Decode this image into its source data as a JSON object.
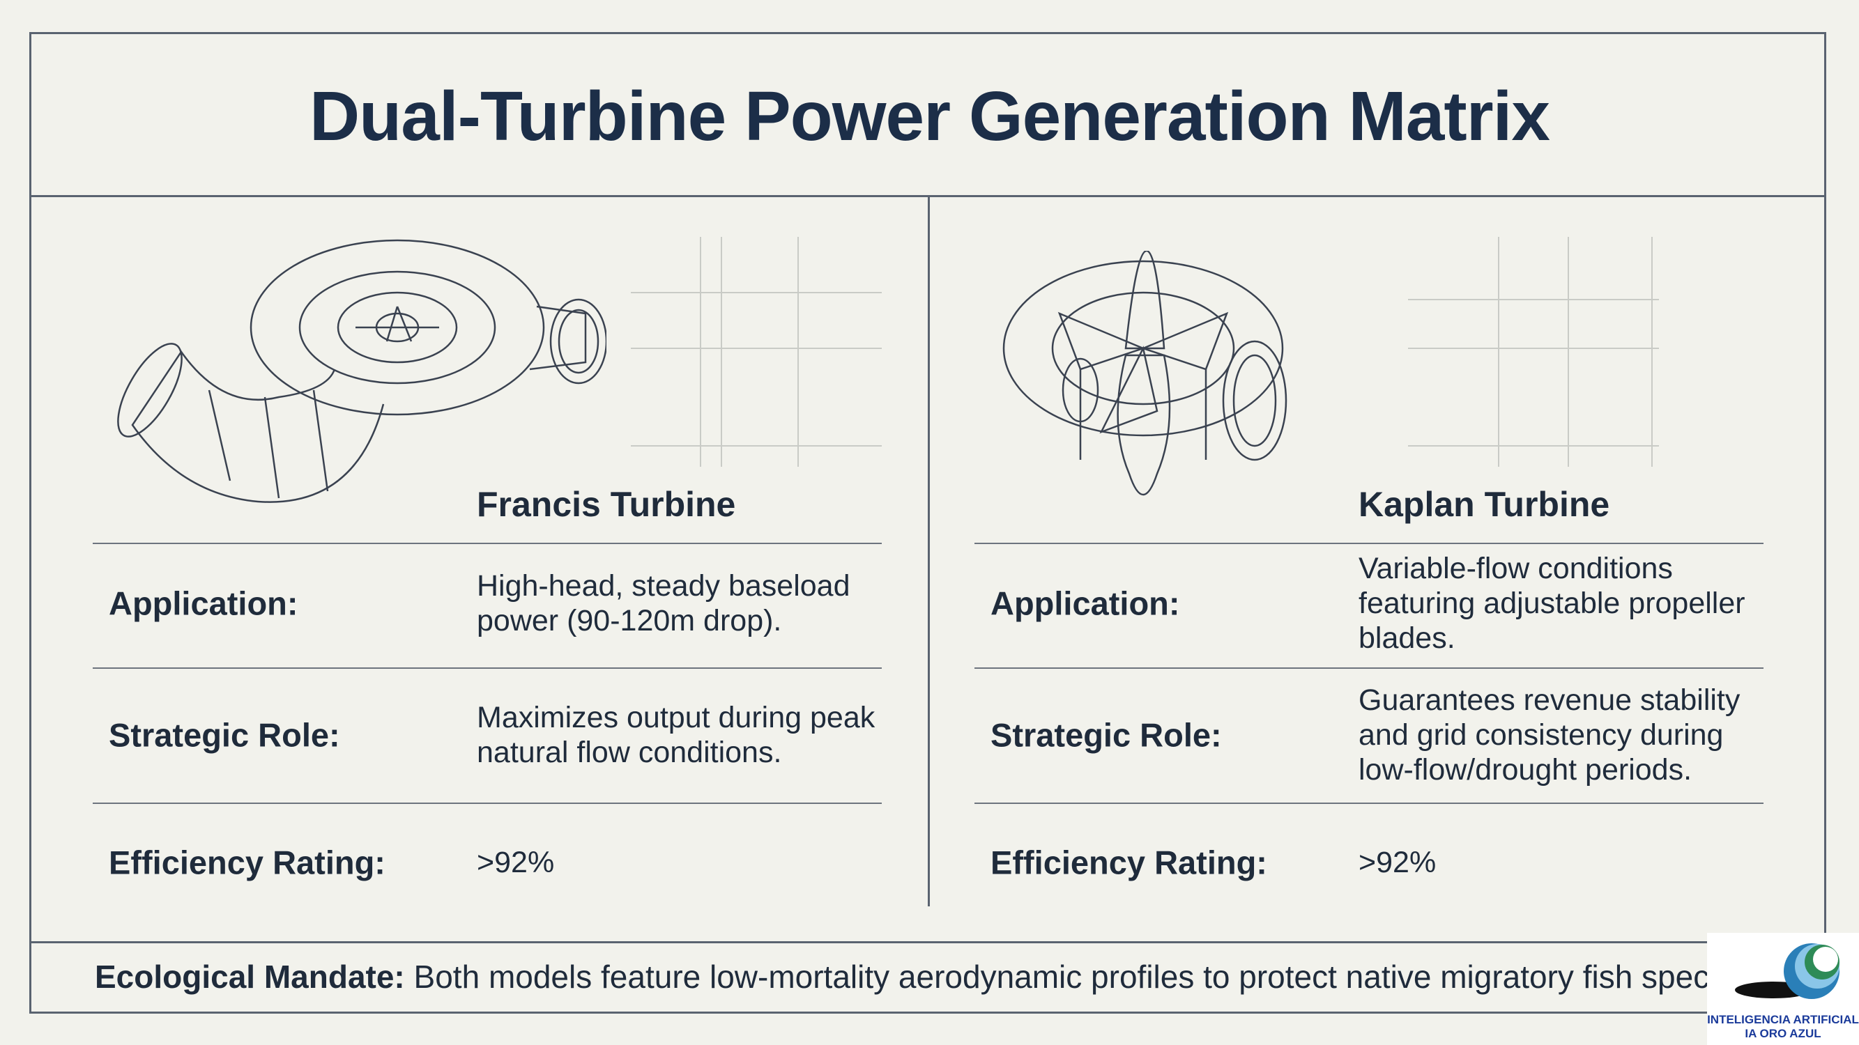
{
  "header": {
    "title": "Dual-Turbine Power Generation Matrix"
  },
  "panels": [
    {
      "name": "Francis Turbine",
      "rows": [
        {
          "label": "Application:",
          "value": [
            "High-head, steady baseload",
            "power (90-120m drop)."
          ]
        },
        {
          "label": "Strategic Role:",
          "value": [
            "Maximizes output during peak",
            "natural flow conditions."
          ]
        },
        {
          "label": "Efficiency Rating:",
          "value": [
            ">92%"
          ]
        }
      ]
    },
    {
      "name": "Kaplan Turbine",
      "rows": [
        {
          "label": "Application:",
          "value": [
            "Variable-flow conditions",
            "featuring adjustable propeller",
            "blades."
          ]
        },
        {
          "label": "Strategic Role:",
          "value": [
            "Guarantees revenue stability",
            "and grid consistency during",
            "low-flow/drought periods."
          ]
        },
        {
          "label": "Efficiency Rating:",
          "value": [
            ">92%"
          ]
        }
      ]
    }
  ],
  "footer": {
    "label": "Ecological Mandate:",
    "text": "Both models feature low-mortality aerodynamic profiles to protect native migratory fish spec"
  },
  "logo": {
    "line1": "INTELIGENCIA ARTIFICIAL",
    "line2": "IA ORO AZUL"
  }
}
